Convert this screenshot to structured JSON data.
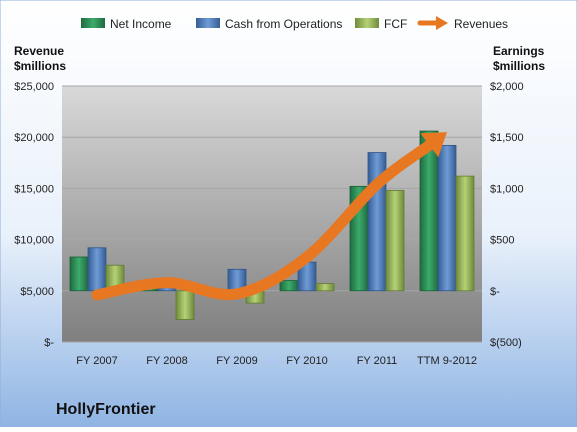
{
  "chart_data": {
    "type": "bar",
    "company": "HollyFrontier",
    "categories": [
      "FY 2007",
      "FY 2008",
      "FY 2009",
      "FY 2010",
      "FY 2011",
      "TTM 9-2012"
    ],
    "left_axis": {
      "title_line1": "Revenue",
      "title_line2": "$millions",
      "ylim": [
        0,
        25000
      ],
      "ticks": [
        0,
        5000,
        10000,
        15000,
        20000,
        25000
      ],
      "tick_labels": [
        "$-",
        "$5,000",
        "$10,000",
        "$15,000",
        "$20,000",
        "$25,000"
      ]
    },
    "right_axis": {
      "title_line1": "Earnings",
      "title_line2": "$millions",
      "ylim": [
        -500,
        2000
      ],
      "ticks": [
        -500,
        0,
        500,
        1000,
        1500,
        2000
      ],
      "tick_labels": [
        "$(500)",
        "$-",
        "$500",
        "$1,000",
        "$1,500",
        "$2,000"
      ]
    },
    "series": [
      {
        "name": "Net Income",
        "axis": "right",
        "kind": "bar",
        "color": "#2E8B57",
        "values": [
          330,
          40,
          0,
          100,
          1020,
          1560
        ]
      },
      {
        "name": "Cash from Operations",
        "axis": "right",
        "kind": "bar",
        "color": "#4F81BD",
        "values": [
          420,
          40,
          210,
          280,
          1350,
          1420
        ]
      },
      {
        "name": "FCF",
        "axis": "right",
        "kind": "bar",
        "color": "#9BBB59",
        "values": [
          250,
          -280,
          -120,
          70,
          980,
          1120
        ]
      },
      {
        "name": "Revenues",
        "axis": "left",
        "kind": "arrow-line",
        "color": "#E87722",
        "values": [
          4600,
          5800,
          4700,
          8300,
          15400,
          20500
        ]
      }
    ],
    "legend_position": "top",
    "grid": true
  }
}
